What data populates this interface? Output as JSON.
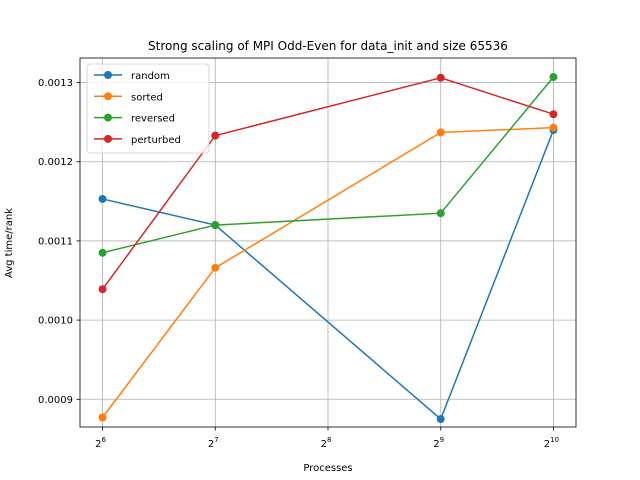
{
  "chart_data": {
    "type": "line",
    "title": "Strong scaling of MPI Odd-Even for data_init and size 65536",
    "xlabel": "Processes",
    "ylabel": "Avg time/rank",
    "x_scale": "log2",
    "x": [
      64,
      128,
      512,
      1024
    ],
    "x_ticks": [
      {
        "value": 64,
        "base": "2",
        "exp": "6"
      },
      {
        "value": 128,
        "base": "2",
        "exp": "7"
      },
      {
        "value": 256,
        "base": "2",
        "exp": "8"
      },
      {
        "value": 512,
        "base": "2",
        "exp": "9"
      },
      {
        "value": 1024,
        "base": "2",
        "exp": "10"
      }
    ],
    "y_ticks": [
      "0.0009",
      "0.0010",
      "0.0011",
      "0.0012",
      "0.0013"
    ],
    "ylim": [
      0.000865,
      0.001331
    ],
    "grid": true,
    "legend_position": "top-left",
    "series": [
      {
        "name": "random",
        "color": "#1f77b4",
        "values": [
          0.001153,
          0.00112,
          0.000875,
          0.00124
        ]
      },
      {
        "name": "sorted",
        "color": "#ff7f0e",
        "values": [
          0.000877,
          0.001066,
          0.001237,
          0.001243
        ]
      },
      {
        "name": "reversed",
        "color": "#2ca02c",
        "values": [
          0.001085,
          0.00112,
          0.001135,
          0.001307
        ]
      },
      {
        "name": "perturbed",
        "color": "#d62728",
        "values": [
          0.001039,
          0.001233,
          0.001306,
          0.00126
        ]
      }
    ]
  }
}
